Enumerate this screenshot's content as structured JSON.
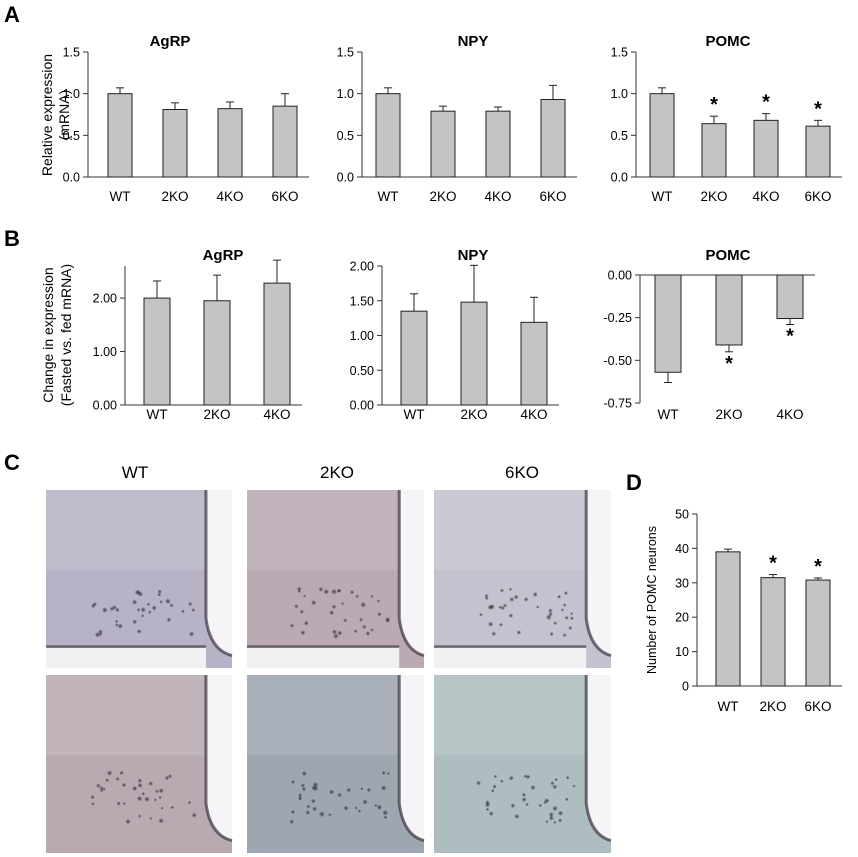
{
  "panels": {
    "A": "A",
    "B": "B",
    "C": "C",
    "D": "D"
  },
  "colors": {
    "bar_fill": "#c4c4c4",
    "bar_stroke": "#222222",
    "axis": "#333333"
  },
  "chart_data": [
    {
      "id": "A-AgRP",
      "panel": "A",
      "type": "bar",
      "title": "AgRP",
      "ylabel": [
        "Relative expression",
        "(mRNA)"
      ],
      "categories": [
        "WT",
        "2KO",
        "4KO",
        "6KO"
      ],
      "values": [
        1.0,
        0.81,
        0.82,
        0.85
      ],
      "errors": [
        0.07,
        0.08,
        0.08,
        0.15
      ],
      "significant": [
        "",
        "",
        "",
        ""
      ],
      "ylim": [
        0,
        1.5
      ],
      "yticks": [
        "0.0",
        "0.5",
        "1.0",
        "1.5"
      ]
    },
    {
      "id": "A-NPY",
      "panel": "A",
      "type": "bar",
      "title": "NPY",
      "categories": [
        "WT",
        "2KO",
        "4KO",
        "6KO"
      ],
      "values": [
        1.0,
        0.79,
        0.79,
        0.93
      ],
      "errors": [
        0.07,
        0.06,
        0.05,
        0.17
      ],
      "significant": [
        "",
        "",
        "",
        ""
      ],
      "ylim": [
        0,
        1.5
      ],
      "yticks": [
        "0.0",
        "0.5",
        "1.0",
        "1.5"
      ]
    },
    {
      "id": "A-POMC",
      "panel": "A",
      "type": "bar",
      "title": "POMC",
      "categories": [
        "WT",
        "2KO",
        "4KO",
        "6KO"
      ],
      "values": [
        1.0,
        0.64,
        0.68,
        0.61
      ],
      "errors": [
        0.07,
        0.09,
        0.08,
        0.07
      ],
      "significant": [
        "",
        "*",
        "*",
        "*"
      ],
      "ylim": [
        0,
        1.5
      ],
      "yticks": [
        "0.0",
        "0.5",
        "1.0",
        "1.5"
      ]
    },
    {
      "id": "B-AgRP",
      "panel": "B",
      "type": "bar",
      "title": "AgRP",
      "ylabel": [
        "Change in expression",
        "(Fasted vs. fed mRNA)"
      ],
      "categories": [
        "WT",
        "2KO",
        "4KO"
      ],
      "values": [
        2.0,
        1.95,
        2.28
      ],
      "errors": [
        0.32,
        0.48,
        0.43
      ],
      "significant": [
        "",
        "",
        ""
      ],
      "ylim": [
        0,
        2.6
      ],
      "yticks": [
        "0.00",
        "1.00",
        "2.00"
      ],
      "ytick_values": [
        0,
        1,
        2
      ]
    },
    {
      "id": "B-NPY",
      "panel": "B",
      "type": "bar",
      "title": "NPY",
      "categories": [
        "WT",
        "2KO",
        "4KO"
      ],
      "values": [
        1.35,
        1.48,
        1.19
      ],
      "errors": [
        0.25,
        0.53,
        0.36
      ],
      "significant": [
        "",
        "",
        ""
      ],
      "ylim": [
        0,
        2.0
      ],
      "yticks": [
        "0.00",
        "0.50",
        "1.00",
        "1.50",
        "2.00"
      ],
      "ytick_values": [
        0,
        0.5,
        1,
        1.5,
        2
      ]
    },
    {
      "id": "B-POMC",
      "panel": "B",
      "type": "bar",
      "title": "POMC",
      "categories": [
        "WT",
        "2KO",
        "4KO"
      ],
      "values": [
        -0.57,
        -0.41,
        -0.255
      ],
      "errors": [
        0.06,
        0.04,
        0.035
      ],
      "significant": [
        "",
        "*",
        "*"
      ],
      "ylim": [
        -0.75,
        0
      ],
      "yticks": [
        "0.00",
        "-0.25",
        "-0.50",
        "-0.75"
      ],
      "ytick_values": [
        0,
        -0.25,
        -0.5,
        -0.75
      ]
    },
    {
      "id": "D-POMC-neurons",
      "panel": "D",
      "type": "bar",
      "title": "",
      "ylabel": [
        "Number of POMC neurons"
      ],
      "categories": [
        "WT",
        "2KO",
        "6KO"
      ],
      "values": [
        39,
        31.5,
        30.8
      ],
      "errors": [
        0.8,
        0.9,
        0.6
      ],
      "significant": [
        "",
        "*",
        "*"
      ],
      "ylim": [
        0,
        50
      ],
      "yticks": [
        "0",
        "10",
        "20",
        "30",
        "40",
        "50"
      ],
      "ytick_values": [
        0,
        10,
        20,
        30,
        40,
        50
      ]
    }
  ],
  "micrographs": {
    "columns": [
      "WT",
      "2KO",
      "6KO"
    ],
    "row_top_tones": [
      "#b7b2c6",
      "#bba9b4",
      "#c4c2ce"
    ],
    "row_bottom_tones": [
      "#b9aab1",
      "#9ea6b0",
      "#aebdbf"
    ]
  }
}
